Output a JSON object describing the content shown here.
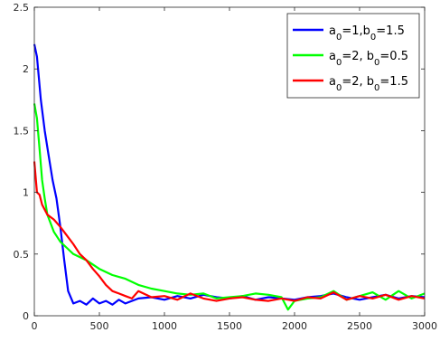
{
  "chart_data": {
    "type": "line",
    "title": "",
    "xlabel": "",
    "ylabel": "",
    "xlim": [
      0,
      3000
    ],
    "ylim": [
      0,
      2.5
    ],
    "grid": false,
    "legend_position": "top-right",
    "x_ticks": [
      0,
      500,
      1000,
      1500,
      2000,
      2500,
      3000
    ],
    "x_tick_labels": [
      "0",
      "500",
      "1000",
      "1500",
      "2000",
      "2500",
      "3000"
    ],
    "y_ticks": [
      0,
      0.5,
      1,
      1.5,
      2,
      2.5
    ],
    "y_tick_labels": [
      "0",
      "0.5",
      "1",
      "1.5",
      "2",
      "2.5"
    ],
    "series": [
      {
        "name": "a0=1,b0=1.5",
        "legend_parts": [
          {
            "text": "a",
            "sub": false
          },
          {
            "text": "0",
            "sub": true
          },
          {
            "text": "=1,b",
            "sub": false
          },
          {
            "text": "0",
            "sub": true
          },
          {
            "text": "=1.5",
            "sub": false
          }
        ],
        "color": "#0000ff",
        "x": [
          0,
          20,
          50,
          80,
          110,
          140,
          170,
          200,
          230,
          260,
          300,
          350,
          400,
          450,
          500,
          550,
          600,
          650,
          700,
          750,
          800,
          900,
          1000,
          1100,
          1200,
          1300,
          1400,
          1500,
          1600,
          1700,
          1800,
          1900,
          2000,
          2100,
          2200,
          2300,
          2400,
          2500,
          2600,
          2700,
          2800,
          2900,
          3000
        ],
        "y": [
          2.2,
          2.1,
          1.75,
          1.5,
          1.3,
          1.1,
          0.95,
          0.72,
          0.45,
          0.2,
          0.1,
          0.12,
          0.09,
          0.14,
          0.1,
          0.12,
          0.09,
          0.13,
          0.1,
          0.12,
          0.14,
          0.15,
          0.13,
          0.16,
          0.14,
          0.17,
          0.15,
          0.14,
          0.16,
          0.13,
          0.15,
          0.14,
          0.13,
          0.15,
          0.16,
          0.18,
          0.15,
          0.13,
          0.15,
          0.17,
          0.14,
          0.16,
          0.15
        ]
      },
      {
        "name": "a0=2, b0=0.5",
        "legend_parts": [
          {
            "text": "a",
            "sub": false
          },
          {
            "text": "0",
            "sub": true
          },
          {
            "text": "=2, b",
            "sub": false
          },
          {
            "text": "0",
            "sub": true
          },
          {
            "text": "=0.5",
            "sub": false
          }
        ],
        "color": "#00ff00",
        "x": [
          0,
          20,
          40,
          60,
          80,
          100,
          150,
          200,
          250,
          300,
          400,
          500,
          600,
          700,
          800,
          900,
          1000,
          1100,
          1200,
          1300,
          1400,
          1500,
          1600,
          1700,
          1800,
          1900,
          1950,
          2000,
          2100,
          2200,
          2300,
          2400,
          2500,
          2600,
          2700,
          2800,
          2900,
          3000
        ],
        "y": [
          1.72,
          1.6,
          1.35,
          1.1,
          0.95,
          0.82,
          0.68,
          0.6,
          0.55,
          0.5,
          0.45,
          0.38,
          0.33,
          0.3,
          0.25,
          0.22,
          0.2,
          0.18,
          0.17,
          0.18,
          0.14,
          0.15,
          0.16,
          0.18,
          0.17,
          0.15,
          0.05,
          0.12,
          0.14,
          0.15,
          0.2,
          0.13,
          0.16,
          0.19,
          0.13,
          0.2,
          0.14,
          0.18
        ]
      },
      {
        "name": "a0=2, b0=1.5",
        "legend_parts": [
          {
            "text": "a",
            "sub": false
          },
          {
            "text": "0",
            "sub": true
          },
          {
            "text": "=2, b",
            "sub": false
          },
          {
            "text": "0",
            "sub": true
          },
          {
            "text": "=1.5",
            "sub": false
          }
        ],
        "color": "#ff0000",
        "x": [
          0,
          20,
          40,
          60,
          100,
          150,
          200,
          250,
          300,
          350,
          400,
          450,
          500,
          550,
          600,
          650,
          700,
          750,
          800,
          900,
          1000,
          1100,
          1200,
          1300,
          1400,
          1500,
          1600,
          1700,
          1800,
          1900,
          2000,
          2100,
          2200,
          2300,
          2400,
          2500,
          2600,
          2700,
          2800,
          2900,
          3000
        ],
        "y": [
          1.25,
          1.0,
          0.98,
          0.9,
          0.82,
          0.78,
          0.72,
          0.65,
          0.58,
          0.5,
          0.45,
          0.38,
          0.32,
          0.25,
          0.2,
          0.18,
          0.16,
          0.14,
          0.2,
          0.15,
          0.16,
          0.13,
          0.18,
          0.14,
          0.12,
          0.14,
          0.15,
          0.13,
          0.12,
          0.14,
          0.12,
          0.15,
          0.14,
          0.19,
          0.13,
          0.16,
          0.14,
          0.17,
          0.13,
          0.16,
          0.14
        ]
      }
    ]
  }
}
